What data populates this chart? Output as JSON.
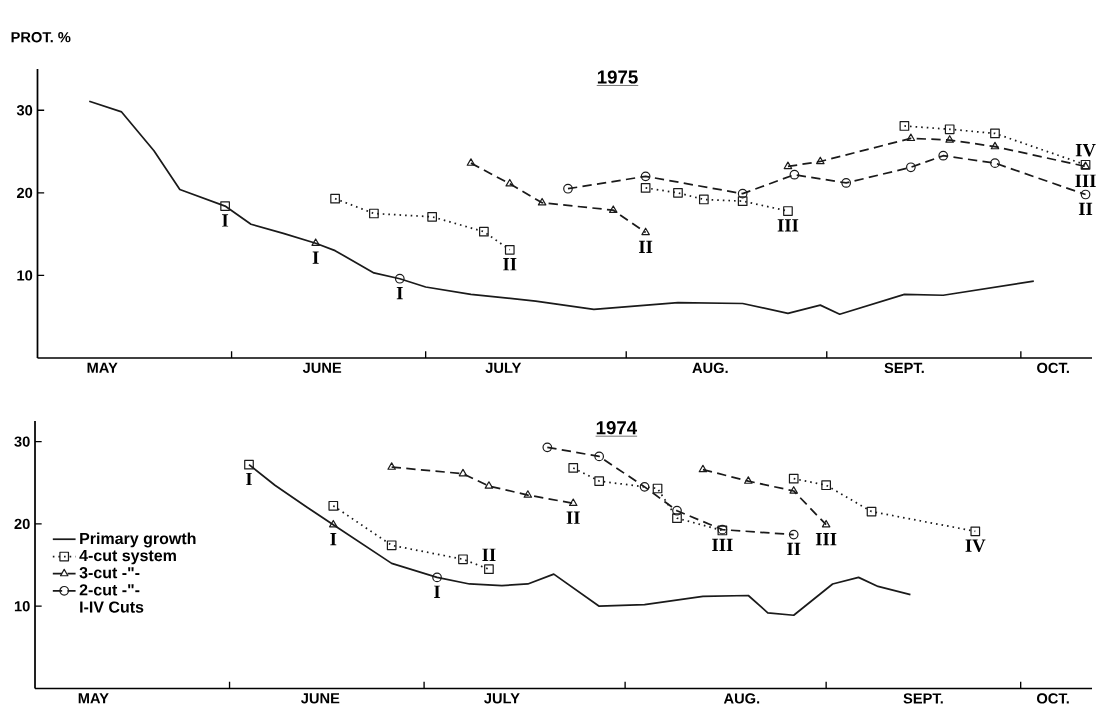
{
  "chart_data": [
    {
      "type": "line",
      "title": "1975",
      "ylabel": "PROT. %",
      "xlim": [
        "1975-05-02",
        "1975-10-12"
      ],
      "ylim": [
        0,
        35
      ],
      "yticks": [
        10,
        20,
        30
      ],
      "xticks": [
        {
          "value": "1975-06-01",
          "label": null
        },
        {
          "value": "1975-07-01",
          "label": null
        },
        {
          "value": "1975-08-01",
          "label": null
        },
        {
          "value": "1975-09-01",
          "label": null
        },
        {
          "value": "1975-10-01",
          "label": null
        },
        {
          "value": "1975-05-12",
          "label": "MAY"
        },
        {
          "value": "1975-06-15",
          "label": "JUNE"
        },
        {
          "value": "1975-07-13",
          "label": "JULY"
        },
        {
          "value": "1975-08-14",
          "label": "AUG."
        },
        {
          "value": "1975-09-13",
          "label": "SEPT."
        },
        {
          "value": "1975-10-06",
          "label": "OCT."
        }
      ],
      "series": [
        {
          "color": "#1a1a1a",
          "marker": "none",
          "line_style": "solid",
          "x": [
            "1975-05-10",
            "1975-05-15",
            "1975-05-20",
            "1975-05-24",
            "1975-05-31",
            "1975-06-04",
            "1975-06-09",
            "1975-06-14",
            "1975-06-17",
            "1975-06-23",
            "1975-06-27",
            "1975-07-01",
            "1975-07-08",
            "1975-07-18",
            "1975-07-27",
            "1975-08-09",
            "1975-08-19",
            "1975-08-26",
            "1975-08-31",
            "1975-09-03",
            "1975-09-13",
            "1975-09-19",
            "1975-10-03"
          ],
          "values": [
            31.1,
            29.8,
            25.1,
            20.4,
            18.4,
            16.2,
            15.1,
            13.9,
            13.0,
            10.3,
            9.6,
            8.6,
            7.7,
            6.9,
            5.9,
            6.7,
            6.6,
            5.4,
            6.4,
            5.3,
            7.7,
            7.6,
            9.3
          ]
        },
        {
          "color": "#1a1a1a",
          "marker": "square",
          "line_style": "dotted",
          "x": [
            "1975-05-31",
            null,
            "1975-06-17",
            "1975-06-23",
            "1975-07-02",
            "1975-07-10",
            "1975-07-14",
            null,
            "1975-08-04",
            "1975-08-09",
            "1975-08-13",
            "1975-08-19",
            "1975-08-26",
            null,
            "1975-09-13",
            "1975-09-20",
            "1975-09-27",
            "1975-10-11"
          ],
          "values": [
            18.4,
            null,
            19.3,
            17.5,
            17.1,
            15.3,
            13.1,
            null,
            20.6,
            20.0,
            19.2,
            19.0,
            17.8,
            null,
            28.1,
            27.7,
            27.2,
            23.4
          ]
        },
        {
          "color": "#1a1a1a",
          "marker": "triangle",
          "line_style": "dashed",
          "x": [
            "1975-06-14",
            null,
            "1975-07-08",
            "1975-07-14",
            "1975-07-19",
            "1975-07-30",
            "1975-08-04",
            null,
            "1975-08-26",
            "1975-08-31",
            "1975-09-14",
            "1975-09-20",
            "1975-09-27",
            "1975-10-11"
          ],
          "values": [
            13.9,
            null,
            23.6,
            21.1,
            18.8,
            17.9,
            15.2,
            null,
            23.2,
            23.8,
            26.6,
            26.4,
            25.6,
            23.2
          ]
        },
        {
          "color": "#1a1a1a",
          "marker": "circle",
          "line_style": "dashed",
          "x": [
            "1975-06-27",
            null,
            "1975-07-23",
            "1975-08-04",
            "1975-08-19",
            "1975-08-27",
            "1975-09-04",
            "1975-09-14",
            "1975-09-19",
            "1975-09-27",
            "1975-10-11"
          ],
          "values": [
            9.6,
            null,
            20.5,
            22.0,
            19.9,
            22.2,
            21.2,
            23.1,
            24.5,
            23.6,
            19.8
          ]
        }
      ],
      "annotations": [
        {
          "text": "I",
          "x": "1975-05-31",
          "y": 18.4
        },
        {
          "text": "I",
          "x": "1975-06-14",
          "y": 13.9
        },
        {
          "text": "I",
          "x": "1975-06-27",
          "y": 9.6
        },
        {
          "text": "II",
          "x": "1975-07-14",
          "y": 13.1
        },
        {
          "text": "II",
          "x": "1975-08-04",
          "y": 15.2
        },
        {
          "text": "III",
          "x": "1975-08-26",
          "y": 17.8
        },
        {
          "text": "IV",
          "x": "1975-10-11",
          "y": 23.4
        },
        {
          "text": "III",
          "x": "1975-10-11",
          "y": 23.2
        },
        {
          "text": "II",
          "x": "1975-10-11",
          "y": 19.8
        }
      ]
    },
    {
      "type": "line",
      "title": "1974",
      "legend": "left",
      "xlim": [
        "1974-05-02",
        "1974-10-12"
      ],
      "ylim": [
        0,
        32.5
      ],
      "yticks": [
        10,
        20,
        30
      ],
      "xticks": [
        {
          "value": "1974-06-01",
          "label": null
        },
        {
          "value": "1974-07-01",
          "label": null
        },
        {
          "value": "1974-08-01",
          "label": null
        },
        {
          "value": "1974-09-01",
          "label": null
        },
        {
          "value": "1974-10-01",
          "label": null
        },
        {
          "value": "1974-05-11",
          "label": "MAY"
        },
        {
          "value": "1974-06-15",
          "label": "JUNE"
        },
        {
          "value": "1974-07-13",
          "label": "JULY"
        },
        {
          "value": "1974-08-19",
          "label": "AUG."
        },
        {
          "value": "1974-09-16",
          "label": "SEPT."
        },
        {
          "value": "1974-10-06",
          "label": "OCT."
        }
      ],
      "series": [
        {
          "name": "Primary growth",
          "color": "#1a1a1a",
          "marker": "none",
          "line_style": "solid",
          "x": [
            "1974-06-04",
            "1974-06-08",
            "1974-06-13",
            "1974-06-17",
            "1974-06-26",
            "1974-07-03",
            "1974-07-08",
            "1974-07-13",
            "1974-07-17",
            "1974-07-21",
            "1974-07-28",
            "1974-08-04",
            "1974-08-13",
            "1974-08-20",
            "1974-08-23",
            "1974-08-27",
            "1974-09-02",
            "1974-09-06",
            "1974-09-09",
            "1974-09-14"
          ],
          "values": [
            27.2,
            24.7,
            22.0,
            19.9,
            15.2,
            13.5,
            12.7,
            12.5,
            12.7,
            13.9,
            10.0,
            10.2,
            11.2,
            11.3,
            9.2,
            8.9,
            12.7,
            13.5,
            12.4,
            11.4
          ]
        },
        {
          "name": "4-cut system",
          "color": "#1a1a1a",
          "marker": "square",
          "line_style": "dotted",
          "x": [
            "1974-06-04",
            null,
            "1974-06-17",
            "1974-06-26",
            "1974-07-07",
            "1974-07-11",
            null,
            "1974-07-24",
            "1974-07-28",
            "1974-08-06",
            "1974-08-09",
            "1974-08-16",
            null,
            "1974-08-27",
            "1974-09-01",
            "1974-09-08",
            "1974-09-24"
          ],
          "values": [
            27.2,
            null,
            22.2,
            17.4,
            15.7,
            14.5,
            null,
            26.8,
            25.2,
            24.3,
            20.7,
            19.2,
            null,
            25.5,
            24.7,
            21.5,
            19.1
          ]
        },
        {
          "name": "3-cut -\"-",
          "color": "#1a1a1a",
          "marker": "triangle",
          "line_style": "dashed",
          "x": [
            "1974-06-17",
            null,
            "1974-06-26",
            "1974-07-07",
            "1974-07-11",
            "1974-07-17",
            "1974-07-24",
            null,
            "1974-08-13",
            "1974-08-20",
            "1974-08-27",
            "1974-09-01"
          ],
          "values": [
            19.9,
            null,
            26.9,
            26.1,
            24.6,
            23.5,
            22.5,
            null,
            26.6,
            25.2,
            24.0,
            19.9
          ]
        },
        {
          "name": "2-cut -\"-",
          "color": "#1a1a1a",
          "marker": "circle",
          "line_style": "dashed",
          "x": [
            "1974-07-03",
            null,
            "1974-07-20",
            "1974-07-28",
            "1974-08-04",
            "1974-08-09",
            "1974-08-16",
            "1974-08-27"
          ],
          "values": [
            13.5,
            null,
            29.3,
            28.2,
            24.5,
            21.6,
            19.3,
            18.7
          ]
        }
      ],
      "annotations": [
        {
          "text": "I",
          "x": "1974-06-04",
          "y": 27.2
        },
        {
          "text": "I",
          "x": "1974-06-17",
          "y": 19.9
        },
        {
          "text": "I",
          "x": "1974-07-03",
          "y": 13.5
        },
        {
          "text": "II",
          "x": "1974-07-11",
          "y": 14.5
        },
        {
          "text": "II",
          "x": "1974-07-24",
          "y": 22.5
        },
        {
          "text": "III",
          "x": "1974-08-16",
          "y": 19.2
        },
        {
          "text": "II",
          "x": "1974-08-27",
          "y": 18.7
        },
        {
          "text": "III",
          "x": "1974-09-01",
          "y": 19.9
        },
        {
          "text": "IV",
          "x": "1974-09-24",
          "y": 19.1
        },
        "I-IV Cuts"
      ]
    }
  ]
}
